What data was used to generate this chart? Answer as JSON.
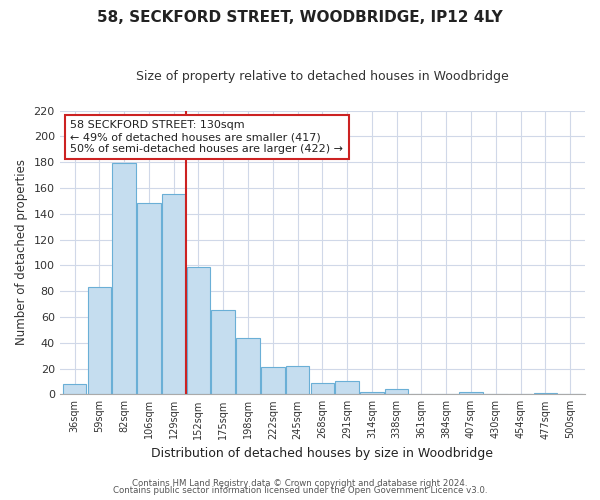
{
  "title": "58, SECKFORD STREET, WOODBRIDGE, IP12 4LY",
  "subtitle": "Size of property relative to detached houses in Woodbridge",
  "xlabel": "Distribution of detached houses by size in Woodbridge",
  "ylabel": "Number of detached properties",
  "bar_labels": [
    "36sqm",
    "59sqm",
    "82sqm",
    "106sqm",
    "129sqm",
    "152sqm",
    "175sqm",
    "198sqm",
    "222sqm",
    "245sqm",
    "268sqm",
    "291sqm",
    "314sqm",
    "338sqm",
    "361sqm",
    "384sqm",
    "407sqm",
    "430sqm",
    "454sqm",
    "477sqm",
    "500sqm"
  ],
  "bar_values": [
    8,
    83,
    179,
    148,
    155,
    99,
    65,
    44,
    21,
    22,
    9,
    10,
    2,
    4,
    0,
    0,
    2,
    0,
    0,
    1,
    0
  ],
  "bar_color": "#c5ddef",
  "bar_edge_color": "#6aafd6",
  "vline_x": 4.5,
  "vline_color": "#cc2222",
  "annotation_box_text": "58 SECKFORD STREET: 130sqm\n← 49% of detached houses are smaller (417)\n50% of semi-detached houses are larger (422) →",
  "ylim": [
    0,
    220
  ],
  "yticks": [
    0,
    20,
    40,
    60,
    80,
    100,
    120,
    140,
    160,
    180,
    200,
    220
  ],
  "footer_line1": "Contains HM Land Registry data © Crown copyright and database right 2024.",
  "footer_line2": "Contains public sector information licensed under the Open Government Licence v3.0.",
  "bg_color": "#ffffff",
  "grid_color": "#d0d8e8"
}
